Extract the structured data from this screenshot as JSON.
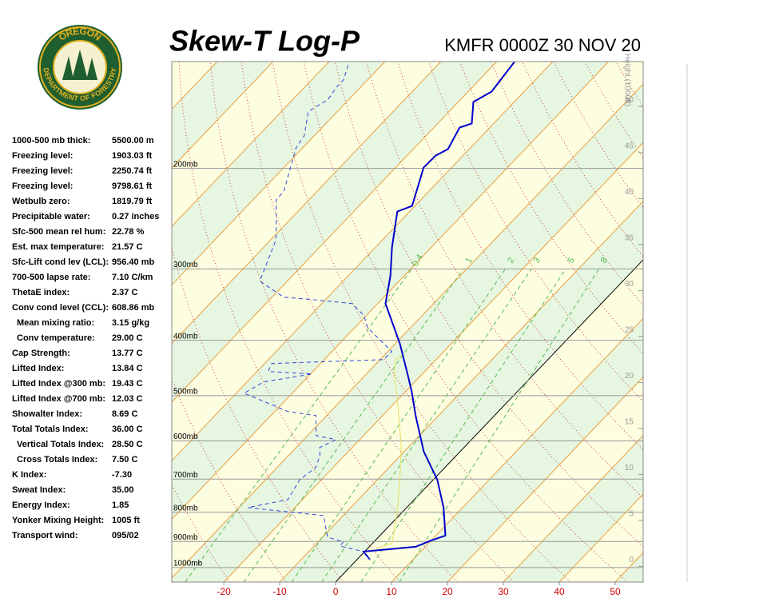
{
  "logo": {
    "top": "OREGON",
    "bottom": "DEPARTMENT OF FORESTRY"
  },
  "indices": [
    [
      "1000-500 mb thick:",
      "5500.00 m"
    ],
    [
      "Freezing level:",
      "1903.03 ft"
    ],
    [
      "Freezing level:",
      "2250.74 ft"
    ],
    [
      "Freezing level:",
      "9798.61 ft"
    ],
    [
      "Wetbulb zero:",
      "1819.79 ft"
    ],
    [
      "Precipitable water:",
      "0.27 inches"
    ],
    [
      "Sfc-500 mean rel hum:",
      "22.78 %"
    ],
    [
      "Est. max temperature:",
      "21.57 C"
    ],
    [
      "Sfc-Lift cond lev (LCL):",
      "956.40 mb"
    ],
    [
      "700-500 lapse rate:",
      "7.10 C/km"
    ],
    [
      "ThetaE index:",
      "2.37 C"
    ],
    [
      "Conv cond level (CCL):",
      "608.86 mb"
    ],
    [
      "Mean mixing ratio:",
      "3.15 g/kg"
    ],
    [
      "Conv temperature:",
      "29.00 C"
    ],
    [
      "Cap Strength:",
      "13.77 C"
    ],
    [
      "Lifted Index:",
      "13.84 C"
    ],
    [
      "Lifted Index @300 mb:",
      "19.43 C"
    ],
    [
      "Lifted Index @700 mb:",
      "12.03 C"
    ],
    [
      "Showalter Index:",
      "8.69 C"
    ],
    [
      "Total Totals Index:",
      "36.00 C"
    ],
    [
      "Vertical Totals Index:",
      "28.50 C"
    ],
    [
      "Cross Totals Index:",
      "7.50 C"
    ],
    [
      "K Index:",
      "-7.30"
    ],
    [
      "Sweat Index:",
      "35.00"
    ],
    [
      "Energy Index:",
      "1.85"
    ],
    [
      "Yonker Mixing Height:",
      "1005 ft"
    ],
    [
      "Transport wind:",
      "095/02"
    ]
  ],
  "chart_data": {
    "type": "skew-t",
    "title": "Skew-T Log-P",
    "subtitle": "KMFR 0000Z 30 NOV 20",
    "xlim": [
      -29.3,
      55
    ],
    "xticks": [
      -20,
      -10,
      0,
      10,
      20,
      30,
      40,
      50
    ],
    "ylim": [
      1060,
      130
    ],
    "log_y": true,
    "yticks": [
      {
        "value": 200,
        "label": "200mb"
      },
      {
        "value": 300,
        "label": "300mb"
      },
      {
        "value": 400,
        "label": "400mb"
      },
      {
        "value": 500,
        "label": "500mb"
      },
      {
        "value": 600,
        "label": "600mb"
      },
      {
        "value": 700,
        "label": "700mb"
      },
      {
        "value": 800,
        "label": "800mb"
      },
      {
        "value": 900,
        "label": "900mb"
      },
      {
        "value": 1000,
        "label": "1000mb"
      }
    ],
    "y2_label": "Height (1000ft)",
    "y2lim": [
      -1.7,
      54.9
    ],
    "y2ticks": [
      0,
      5,
      10,
      15,
      20,
      25,
      30,
      35,
      40,
      45,
      50
    ],
    "mixing_ratios": [
      {
        "value": 0.4,
        "label": "0.4"
      },
      1,
      2,
      3,
      5,
      8
    ],
    "series": [
      {
        "color": "#0000cc",
        "pressure": [
          968.3,
          937.5,
          919.5,
          896.1,
          878.9,
          785.1,
          701.3,
          626.4,
          541.8,
          491.8,
          461.1,
          405.3,
          344.9,
          308.1,
          275.2,
          238.0,
          232.7,
          199.3,
          189.9,
          185.0,
          169.6,
          166.9,
          153.0,
          146.7,
          130.2
        ],
        "values": [
          2.3,
          -0.2,
          8.3,
          10.0,
          11.7,
          6.6,
          0.7,
          -6.5,
          -14.1,
          -18.9,
          -22.3,
          -29.2,
          -38.6,
          -42.5,
          -47.0,
          -52.2,
          -50.5,
          -55.0,
          -54.9,
          -53.8,
          -55.4,
          -53.9,
          -57.3,
          -55.8,
          -56.8
        ]
      },
      {
        "color": "#3344dd",
        "dashed": true,
        "pressure": [
          968.3,
          937.5,
          916.6,
          901.9,
          884.6,
          810.8,
          785.1,
          760.2,
          701.3,
          668.2,
          636.6,
          616.4,
          596.8,
          587.3,
          541.8,
          533.1,
          495.0,
          473.1,
          458.1,
          453.7,
          439.3,
          432.3,
          418.5,
          380.0,
          362.0,
          344.9,
          339.4,
          336.1,
          315.1,
          266.4,
          226.7,
          219.6,
          183.9,
          175.2,
          159.0,
          151.5,
          144.3,
          139.8,
          131.9
        ],
        "values": [
          2.3,
          -0.2,
          -5.4,
          -5.4,
          -9.1,
          -13.5,
          -28.4,
          -22.6,
          -23.9,
          -23.1,
          -24.4,
          -25.8,
          -24.3,
          -28.5,
          -31.9,
          -37.6,
          -48.6,
          -47.0,
          -39.7,
          -48.0,
          -48.7,
          -29.4,
          -29.3,
          -37.7,
          -40.4,
          -44.6,
          -52.4,
          -57.9,
          -64.9,
          -69.1,
          -75.9,
          -75.9,
          -81.2,
          -81.8,
          -85.2,
          -83.7,
          -84.3,
          -84.3,
          -86.0
        ]
      },
      {
        "color": "#e8e060",
        "pressure": [
          925.5,
          907.7,
          797.9,
          701.3,
          616.4,
          507.9,
          461.1,
          432.3,
          425.4
        ],
        "values": [
          1.4,
          3.5,
          -1.0,
          -6.0,
          -11.2,
          -20.1,
          -24.8,
          -27.2,
          -26.8
        ]
      }
    ]
  }
}
